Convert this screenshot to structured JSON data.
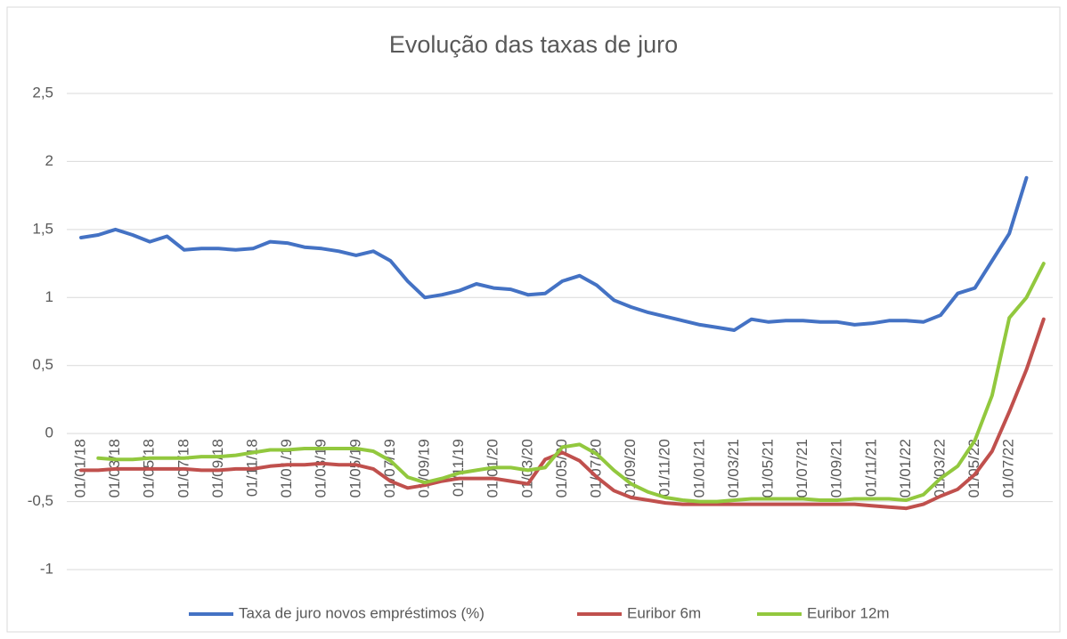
{
  "chart_data": {
    "type": "line",
    "title": "Evolução das taxas de juro",
    "categories": [
      "01/01/18",
      null,
      "01/03/18",
      null,
      "01/05/18",
      null,
      "01/07/18",
      null,
      "01/09/18",
      null,
      "01/11/18",
      null,
      "01/01/19",
      null,
      "01/03/19",
      null,
      "01/05/19",
      null,
      "01/07/19",
      null,
      "01/09/19",
      null,
      "01/11/19",
      null,
      "01/01/20",
      null,
      "01/03/20",
      null,
      "01/05/20",
      null,
      "01/07/20",
      null,
      "01/09/20",
      null,
      "01/11/20",
      null,
      "01/01/21",
      null,
      "01/03/21",
      null,
      "01/05/21",
      null,
      "01/07/21",
      null,
      "01/09/21",
      null,
      "01/11/21",
      null,
      "01/01/22",
      null,
      "01/03/22",
      null,
      "01/05/22",
      null,
      "01/07/22",
      null,
      null
    ],
    "series": [
      {
        "name": "Taxa de juro novos empréstimos (%)",
        "color": "#4472c4",
        "values": [
          1.44,
          1.46,
          1.5,
          1.46,
          1.41,
          1.45,
          1.35,
          1.36,
          1.36,
          1.35,
          1.36,
          1.41,
          1.4,
          1.37,
          1.36,
          1.34,
          1.31,
          1.34,
          1.27,
          1.12,
          1.0,
          1.02,
          1.05,
          1.1,
          1.07,
          1.06,
          1.02,
          1.03,
          1.12,
          1.16,
          1.09,
          0.98,
          0.93,
          0.89,
          0.86,
          0.83,
          0.8,
          0.78,
          0.76,
          0.84,
          0.82,
          0.83,
          0.83,
          0.82,
          0.82,
          0.8,
          0.81,
          0.83,
          0.83,
          0.82,
          0.87,
          1.03,
          1.07,
          1.27,
          1.47,
          1.88,
          null
        ]
      },
      {
        "name": "Euribor 6m",
        "color": "#c0504d",
        "values": [
          -0.27,
          -0.27,
          -0.26,
          -0.26,
          -0.26,
          -0.26,
          -0.26,
          -0.27,
          -0.27,
          -0.26,
          -0.26,
          -0.24,
          -0.23,
          -0.23,
          -0.22,
          -0.23,
          -0.23,
          -0.26,
          -0.35,
          -0.4,
          -0.38,
          -0.35,
          -0.33,
          -0.33,
          -0.33,
          -0.35,
          -0.37,
          -0.19,
          -0.14,
          -0.2,
          -0.32,
          -0.42,
          -0.47,
          -0.49,
          -0.51,
          -0.52,
          -0.52,
          -0.52,
          -0.52,
          -0.52,
          -0.52,
          -0.52,
          -0.52,
          -0.52,
          -0.52,
          -0.52,
          -0.53,
          -0.54,
          -0.55,
          -0.52,
          -0.46,
          -0.41,
          -0.3,
          -0.13,
          0.16,
          0.47,
          0.84
        ]
      },
      {
        "name": "Euribor 12m",
        "color": "#92c83e",
        "values": [
          null,
          -0.18,
          -0.19,
          -0.19,
          -0.18,
          -0.18,
          -0.18,
          -0.17,
          -0.17,
          -0.16,
          -0.14,
          -0.12,
          -0.12,
          -0.11,
          -0.11,
          -0.11,
          -0.11,
          -0.13,
          -0.2,
          -0.32,
          -0.36,
          -0.33,
          -0.29,
          -0.27,
          -0.25,
          -0.25,
          -0.27,
          -0.25,
          -0.1,
          -0.08,
          -0.15,
          -0.27,
          -0.37,
          -0.43,
          -0.47,
          -0.49,
          -0.5,
          -0.5,
          -0.49,
          -0.48,
          -0.48,
          -0.48,
          -0.48,
          -0.49,
          -0.49,
          -0.48,
          -0.48,
          -0.48,
          -0.49,
          -0.45,
          -0.33,
          -0.24,
          -0.05,
          0.28,
          0.85,
          1.0,
          1.25
        ]
      }
    ],
    "ylim": [
      -1,
      2.5
    ],
    "yticks": [
      -1,
      {
        "value": -0.5,
        "label": "-0,5"
      },
      0,
      {
        "value": 0.5,
        "label": "0,5"
      },
      1,
      {
        "value": 1.5,
        "label": "1,5"
      },
      2,
      {
        "value": 2.5,
        "label": "2,5"
      }
    ],
    "grid": true,
    "legend": "bottom"
  }
}
